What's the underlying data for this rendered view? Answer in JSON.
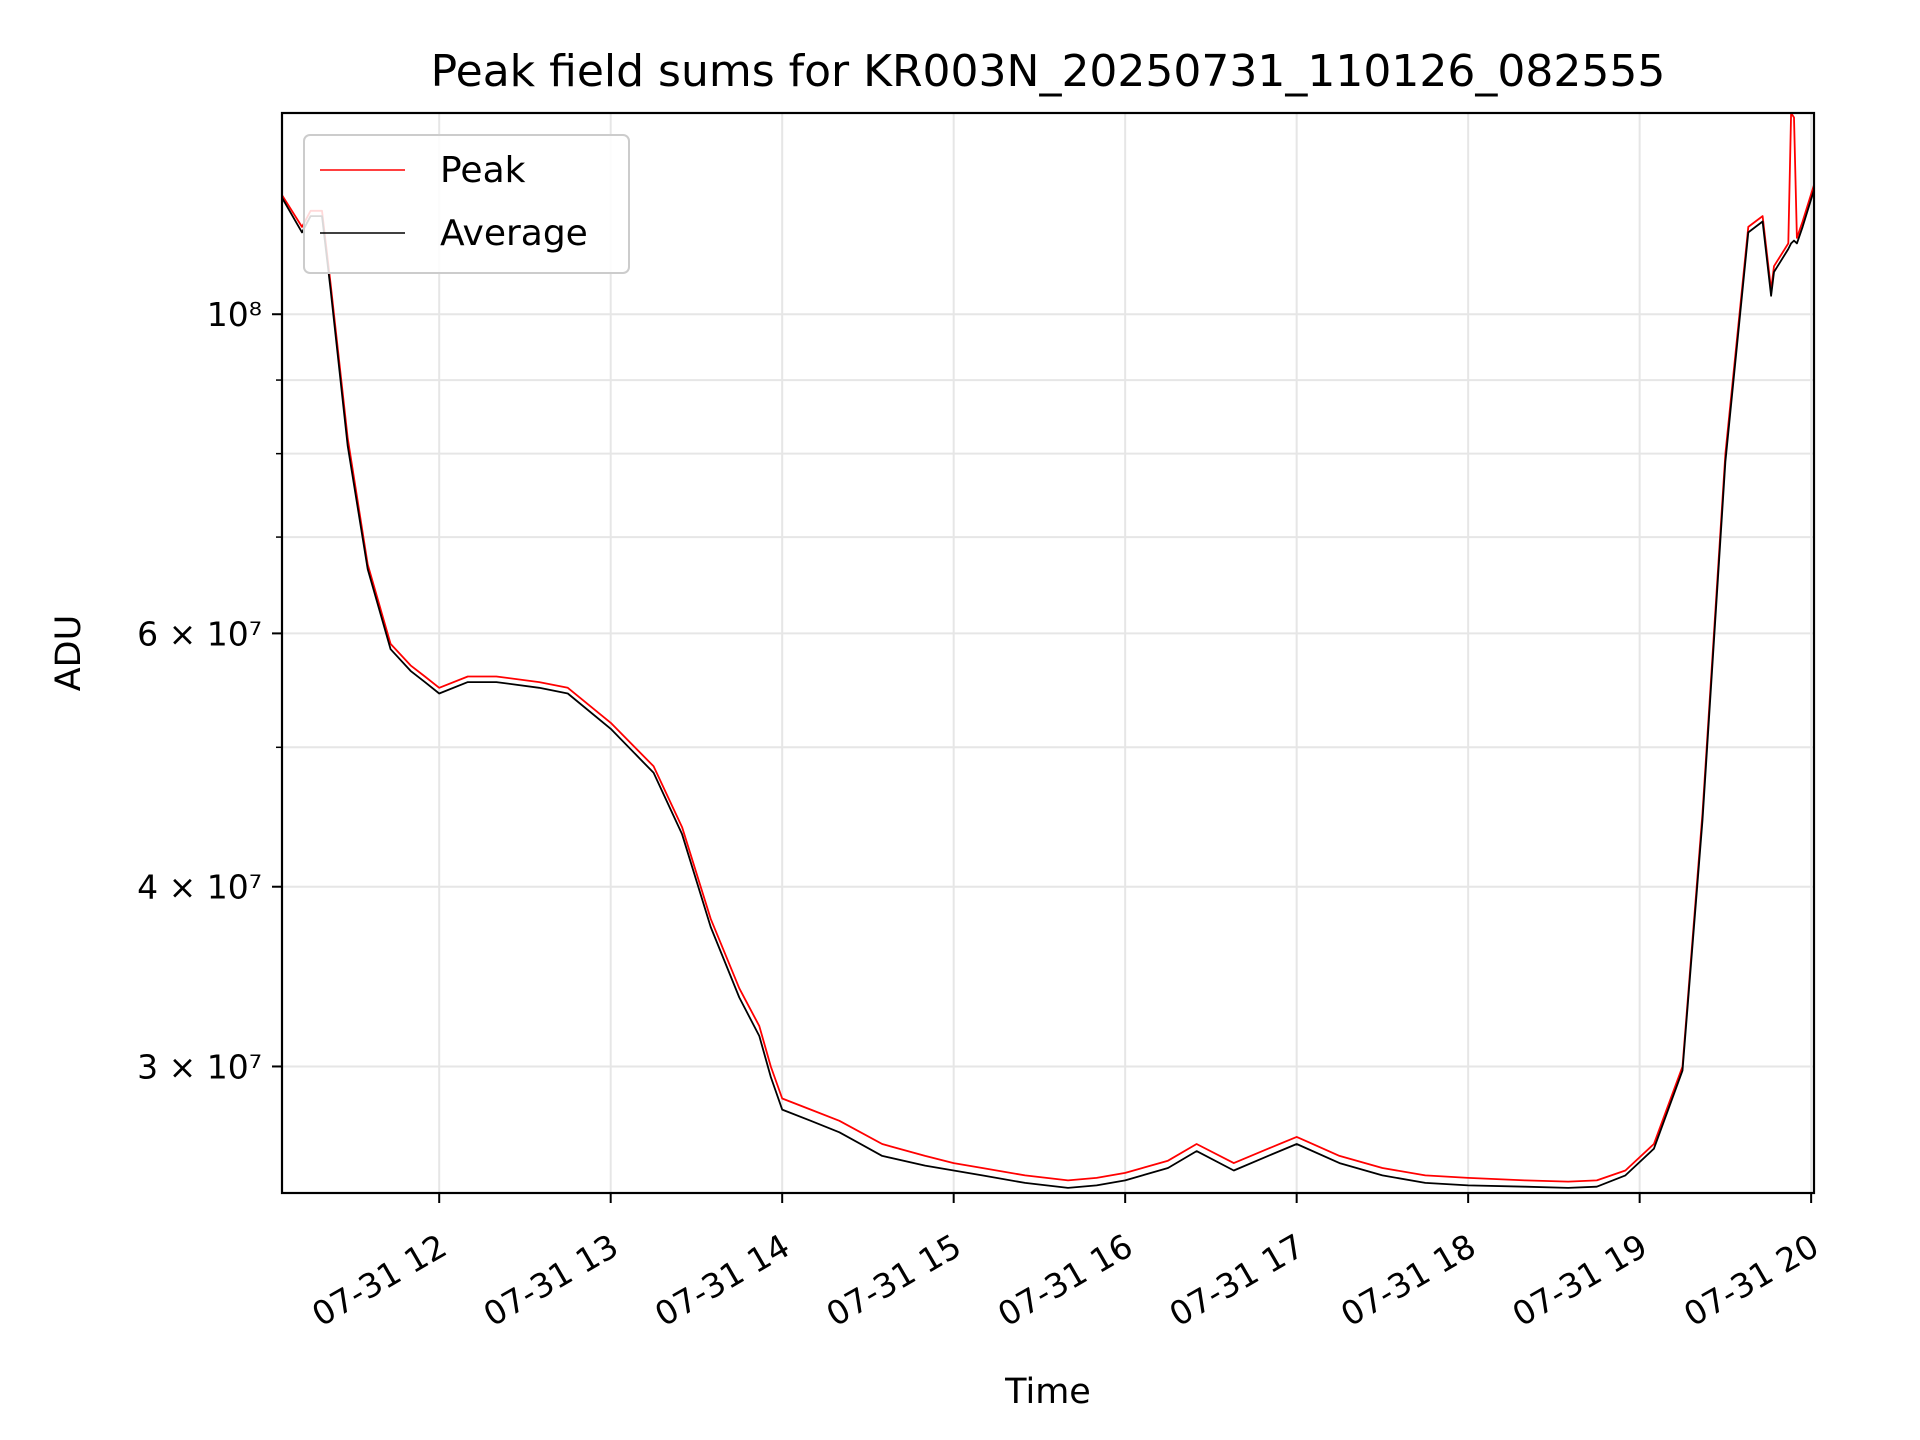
{
  "chart_data": {
    "type": "line",
    "title": "Peak field sums for KR003N_20250731_110126_082555",
    "xlabel": "Time",
    "ylabel": "ADU",
    "y_scale": "log",
    "xlim": [
      "2025-07-31 11:05",
      "2025-07-31 20:01"
    ],
    "ylim": [
      24500000,
      138000000
    ],
    "grid": true,
    "legend_position": "top-left",
    "x_ticks": [
      {
        "value": "2025-07-31 12:00",
        "label": "07-31 12"
      },
      {
        "value": "2025-07-31 13:00",
        "label": "07-31 13"
      },
      {
        "value": "2025-07-31 14:00",
        "label": "07-31 14"
      },
      {
        "value": "2025-07-31 15:00",
        "label": "07-31 15"
      },
      {
        "value": "2025-07-31 16:00",
        "label": "07-31 16"
      },
      {
        "value": "2025-07-31 17:00",
        "label": "07-31 17"
      },
      {
        "value": "2025-07-31 18:00",
        "label": "07-31 18"
      },
      {
        "value": "2025-07-31 19:00",
        "label": "07-31 19"
      },
      {
        "value": "2025-07-31 20:00",
        "label": "07-31 20"
      }
    ],
    "y_ticks": [
      {
        "value": 30000000,
        "label": "3 × 10⁷"
      },
      {
        "value": 40000000,
        "label": "4 × 10⁷"
      },
      {
        "value": 60000000,
        "label": "6 × 10⁷"
      },
      {
        "value": 100000000,
        "label": "10⁸"
      }
    ],
    "y_minor_ticks": [
      50000000,
      70000000,
      80000000,
      90000000
    ],
    "series": [
      {
        "name": "Peak",
        "color": "#ff0000",
        "x": [
          "2025-07-31 11:05",
          "2025-07-31 11:12",
          "2025-07-31 11:15",
          "2025-07-31 11:19",
          "2025-07-31 11:22",
          "2025-07-31 11:28",
          "2025-07-31 11:35",
          "2025-07-31 11:43",
          "2025-07-31 11:50",
          "2025-07-31 11:55",
          "2025-07-31 12:00",
          "2025-07-31 12:10",
          "2025-07-31 12:20",
          "2025-07-31 12:35",
          "2025-07-31 12:45",
          "2025-07-31 13:00",
          "2025-07-31 13:15",
          "2025-07-31 13:25",
          "2025-07-31 13:35",
          "2025-07-31 13:45",
          "2025-07-31 13:52",
          "2025-07-31 13:56",
          "2025-07-31 14:00",
          "2025-07-31 14:10",
          "2025-07-31 14:20",
          "2025-07-31 14:35",
          "2025-07-31 14:50",
          "2025-07-31 15:00",
          "2025-07-31 15:10",
          "2025-07-31 15:25",
          "2025-07-31 15:40",
          "2025-07-31 15:50",
          "2025-07-31 16:00",
          "2025-07-31 16:15",
          "2025-07-31 16:25",
          "2025-07-31 16:38",
          "2025-07-31 16:50",
          "2025-07-31 17:00",
          "2025-07-31 17:15",
          "2025-07-31 17:30",
          "2025-07-31 17:45",
          "2025-07-31 18:00",
          "2025-07-31 18:20",
          "2025-07-31 18:35",
          "2025-07-31 18:45",
          "2025-07-31 18:55",
          "2025-07-31 19:05",
          "2025-07-31 19:15",
          "2025-07-31 19:22",
          "2025-07-31 19:30",
          "2025-07-31 19:38",
          "2025-07-31 19:43",
          "2025-07-31 19:46",
          "2025-07-31 19:47",
          "2025-07-31 19:52",
          "2025-07-31 19:53",
          "2025-07-31 19:54",
          "2025-07-31 19:55",
          "2025-07-31 19:57",
          "2025-07-31 20:01"
        ],
        "values": [
          121000000,
          115000000,
          118000000,
          118000000,
          105000000,
          82000000,
          67000000,
          59000000,
          57000000,
          56000000,
          55000000,
          56000000,
          56000000,
          55500000,
          55000000,
          52000000,
          48500000,
          44000000,
          38000000,
          34000000,
          32000000,
          30000000,
          28500000,
          28000000,
          27500000,
          26500000,
          26000000,
          25700000,
          25500000,
          25200000,
          25000000,
          25100000,
          25300000,
          25800000,
          26500000,
          25700000,
          26300000,
          26800000,
          26000000,
          25500000,
          25200000,
          25100000,
          25000000,
          24950000,
          25000000,
          25400000,
          26500000,
          30000000,
          45000000,
          80000000,
          115000000,
          117000000,
          104000000,
          108000000,
          112000000,
          138000000,
          137000000,
          113000000,
          116000000,
          123000000
        ]
      },
      {
        "name": "Average",
        "color": "#000000",
        "x": [
          "2025-07-31 11:05",
          "2025-07-31 11:12",
          "2025-07-31 11:15",
          "2025-07-31 11:19",
          "2025-07-31 11:22",
          "2025-07-31 11:28",
          "2025-07-31 11:35",
          "2025-07-31 11:43",
          "2025-07-31 11:50",
          "2025-07-31 11:55",
          "2025-07-31 12:00",
          "2025-07-31 12:10",
          "2025-07-31 12:20",
          "2025-07-31 12:35",
          "2025-07-31 12:45",
          "2025-07-31 13:00",
          "2025-07-31 13:15",
          "2025-07-31 13:25",
          "2025-07-31 13:35",
          "2025-07-31 13:45",
          "2025-07-31 13:52",
          "2025-07-31 13:56",
          "2025-07-31 14:00",
          "2025-07-31 14:10",
          "2025-07-31 14:20",
          "2025-07-31 14:35",
          "2025-07-31 14:50",
          "2025-07-31 15:00",
          "2025-07-31 15:10",
          "2025-07-31 15:25",
          "2025-07-31 15:40",
          "2025-07-31 15:50",
          "2025-07-31 16:00",
          "2025-07-31 16:15",
          "2025-07-31 16:25",
          "2025-07-31 16:38",
          "2025-07-31 16:50",
          "2025-07-31 17:00",
          "2025-07-31 17:15",
          "2025-07-31 17:30",
          "2025-07-31 17:45",
          "2025-07-31 18:00",
          "2025-07-31 18:20",
          "2025-07-31 18:35",
          "2025-07-31 18:45",
          "2025-07-31 18:55",
          "2025-07-31 19:05",
          "2025-07-31 19:15",
          "2025-07-31 19:22",
          "2025-07-31 19:30",
          "2025-07-31 19:38",
          "2025-07-31 19:43",
          "2025-07-31 19:46",
          "2025-07-31 19:47",
          "2025-07-31 19:52",
          "2025-07-31 19:53",
          "2025-07-31 19:54",
          "2025-07-31 19:55",
          "2025-07-31 19:57",
          "2025-07-31 20:01"
        ],
        "values": [
          120500000,
          114000000,
          117000000,
          117000000,
          104000000,
          81000000,
          66500000,
          58500000,
          56500000,
          55500000,
          54500000,
          55500000,
          55500000,
          55000000,
          54500000,
          51500000,
          48000000,
          43500000,
          37500000,
          33500000,
          31500000,
          29500000,
          28000000,
          27500000,
          27000000,
          26000000,
          25600000,
          25400000,
          25200000,
          24900000,
          24700000,
          24800000,
          25000000,
          25500000,
          26200000,
          25400000,
          26000000,
          26500000,
          25700000,
          25200000,
          24900000,
          24800000,
          24750000,
          24700000,
          24750000,
          25200000,
          26300000,
          29800000,
          44500000,
          79000000,
          114000000,
          116000000,
          103000000,
          107000000,
          111000000,
          112000000,
          112500000,
          112000000,
          115000000,
          122000000
        ]
      }
    ]
  }
}
